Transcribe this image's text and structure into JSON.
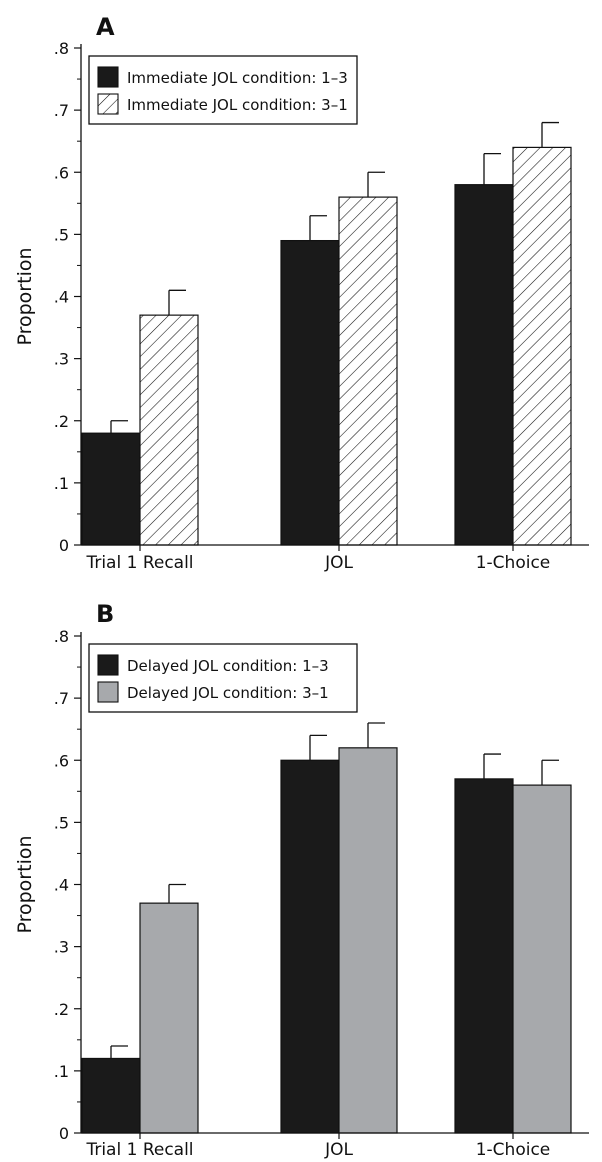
{
  "chart_data": [
    {
      "panel": "A",
      "type": "bar",
      "ylabel": "Proportion",
      "xlabel": "",
      "ylim": [
        0,
        0.8
      ],
      "yticks": [
        0,
        0.1,
        0.2,
        0.3,
        0.4,
        0.5,
        0.6,
        0.7,
        0.8
      ],
      "ytick_labels": [
        "0",
        ".1",
        ".2",
        ".3",
        ".4",
        ".5",
        ".6",
        ".7",
        ".8"
      ],
      "categories": [
        "Trial 1 Recall",
        "JOL",
        "1-Choice"
      ],
      "legend_position": "top-left",
      "grid": false,
      "series": [
        {
          "name": "Immediate JOL condition: 1–3",
          "values": [
            0.18,
            0.49,
            0.58
          ],
          "errors": [
            0.02,
            0.04,
            0.05
          ],
          "fill": "solid",
          "color": "#1a1a1a"
        },
        {
          "name": "Immediate JOL condition: 3–1",
          "values": [
            0.37,
            0.56,
            0.64
          ],
          "errors": [
            0.04,
            0.04,
            0.04
          ],
          "fill": "hatch",
          "color": "#ffffff"
        }
      ]
    },
    {
      "panel": "B",
      "type": "bar",
      "ylabel": "Proportion",
      "xlabel": "",
      "ylim": [
        0,
        0.8
      ],
      "yticks": [
        0,
        0.1,
        0.2,
        0.3,
        0.4,
        0.5,
        0.6,
        0.7,
        0.8
      ],
      "ytick_labels": [
        "0",
        ".1",
        ".2",
        ".3",
        ".4",
        ".5",
        ".6",
        ".7",
        ".8"
      ],
      "categories": [
        "Trial 1 Recall",
        "JOL",
        "1-Choice"
      ],
      "legend_position": "top-left",
      "grid": false,
      "series": [
        {
          "name": "Delayed JOL condition: 1–3",
          "values": [
            0.12,
            0.6,
            0.57
          ],
          "errors": [
            0.02,
            0.04,
            0.04
          ],
          "fill": "solid",
          "color": "#1a1a1a"
        },
        {
          "name": "Delayed JOL condition: 3–1",
          "values": [
            0.37,
            0.62,
            0.56
          ],
          "errors": [
            0.03,
            0.04,
            0.04
          ],
          "fill": "solid",
          "color": "#a7a9ac"
        }
      ]
    }
  ]
}
